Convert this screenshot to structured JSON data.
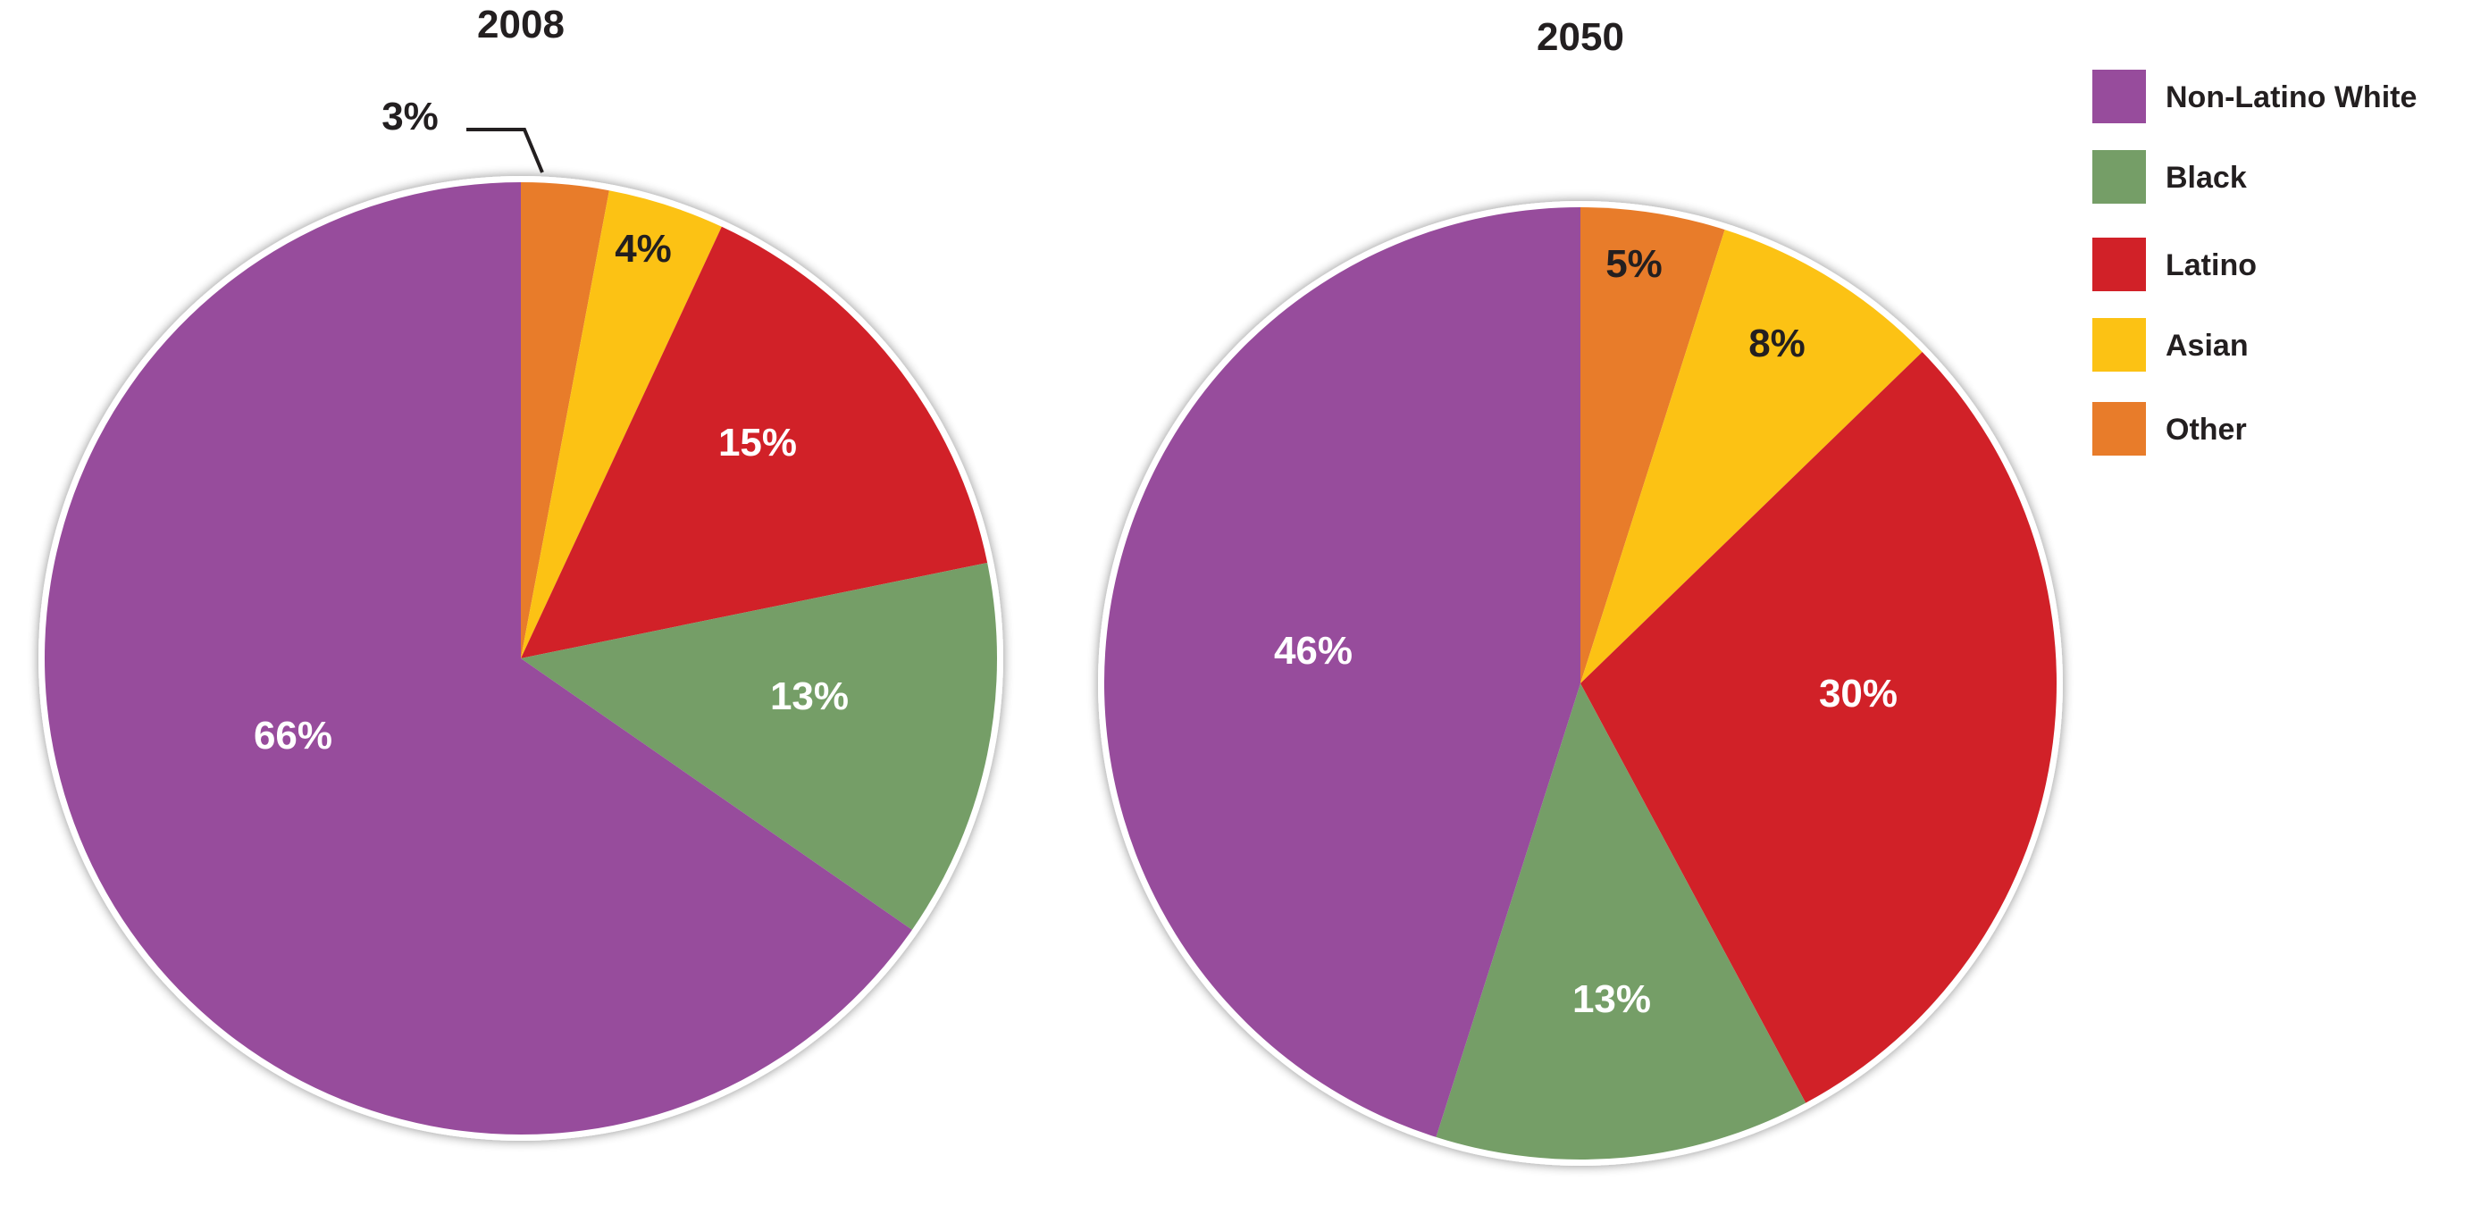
{
  "chart_data": [
    {
      "type": "pie",
      "title": "2008",
      "categories": [
        "Non-Latino White",
        "Black",
        "Latino",
        "Asian",
        "Other"
      ],
      "values": [
        66,
        13,
        15,
        4,
        3
      ],
      "labels": [
        "66%",
        "13%",
        "15%",
        "4%",
        "3%"
      ]
    },
    {
      "type": "pie",
      "title": "2050",
      "categories": [
        "Non-Latino White",
        "Black",
        "Latino",
        "Asian",
        "Other"
      ],
      "values": [
        46,
        13,
        30,
        8,
        5
      ],
      "labels": [
        "46%",
        "13%",
        "30%",
        "8%",
        "5%"
      ]
    }
  ],
  "legend": [
    {
      "label": "Non-Latino White",
      "color": "#974c9c"
    },
    {
      "label": "Black",
      "color": "#759e67"
    },
    {
      "label": "Latino",
      "color": "#d12128"
    },
    {
      "label": "Asian",
      "color": "#fcc214"
    },
    {
      "label": "Other",
      "color": "#e87c2a"
    }
  ],
  "legend_placement": "right",
  "colors": {
    "Non-Latino White": "#974c9c",
    "Black": "#759e67",
    "Latino": "#d12128",
    "Asian": "#fcc214",
    "Other": "#e87c2a"
  }
}
